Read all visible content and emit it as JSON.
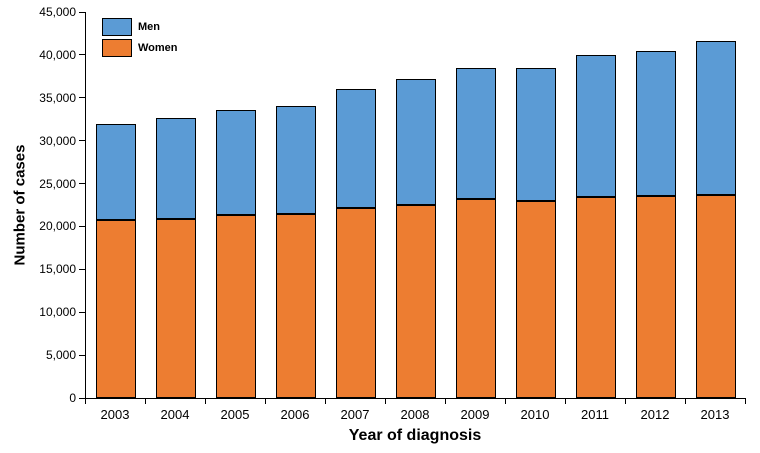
{
  "chart_data": {
    "type": "bar",
    "subtype": "stacked",
    "title": "",
    "xlabel": "Year of diagnosis",
    "ylabel": "Number of cases",
    "ylim": [
      0,
      45000
    ],
    "ytick_step": 5000,
    "ytick_labels": [
      "0",
      "5,000",
      "10,000",
      "15,000",
      "20,000",
      "25,000",
      "30,000",
      "35,000",
      "40,000",
      "45,000"
    ],
    "grid": false,
    "legend_position": "top-left-inside",
    "legend_order": [
      "Men",
      "Women"
    ],
    "categories": [
      "2003",
      "2004",
      "2005",
      "2006",
      "2007",
      "2008",
      "2009",
      "2010",
      "2011",
      "2012",
      "2013"
    ],
    "series": [
      {
        "name": "Women",
        "color": "#ED7D31",
        "values": [
          20700,
          20900,
          21300,
          21500,
          22200,
          22500,
          23200,
          23000,
          23400,
          23500,
          23700
        ]
      },
      {
        "name": "Men",
        "color": "#5B9BD5",
        "values": [
          11300,
          11800,
          12300,
          12600,
          13800,
          14700,
          15300,
          15500,
          16600,
          17000,
          17900
        ]
      }
    ],
    "totals": [
      32000,
      32700,
      33600,
      34100,
      36000,
      37200,
      38500,
      38500,
      40000,
      40500,
      41600
    ]
  }
}
